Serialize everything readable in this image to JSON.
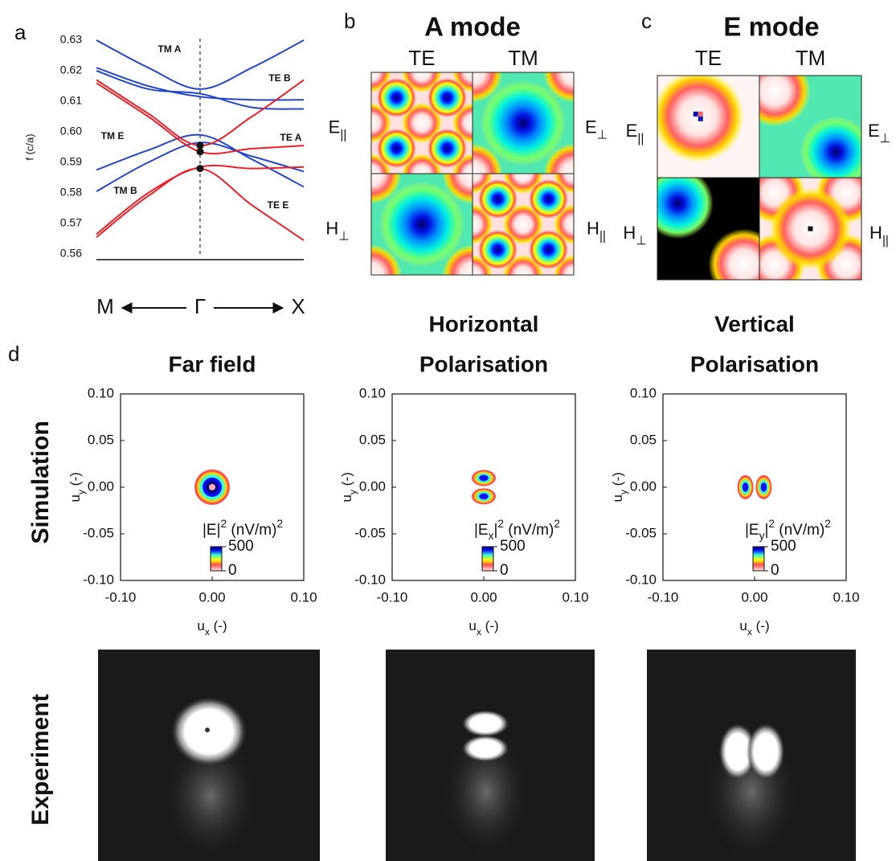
{
  "panel_letters": [
    "a",
    "b",
    "c",
    "d"
  ],
  "modes": [
    {
      "title": "A mode",
      "columns": [
        "TE",
        "TM"
      ],
      "fields": [
        {
          "text": "E",
          "sub": "||"
        },
        {
          "text": "E",
          "sub": "⊥"
        },
        {
          "text": "H",
          "sub": "⊥"
        },
        {
          "text": "H",
          "sub": "||"
        }
      ]
    },
    {
      "title": "E mode",
      "columns": [
        "TE",
        "TM"
      ],
      "fields": [
        {
          "text": "E",
          "sub": "||"
        },
        {
          "text": "E",
          "sub": "⊥"
        },
        {
          "text": "H",
          "sub": "⊥"
        },
        {
          "text": "H",
          "sub": "||"
        }
      ]
    }
  ],
  "rows": [
    "Simulation",
    "Experiment"
  ],
  "chart_data": [
    {
      "type": "line",
      "ylabel": "f (c/a)",
      "categories": [
        "M",
        null,
        "Γ",
        null,
        "X"
      ],
      "ylim": [
        0.56,
        0.63
      ],
      "yticks": [
        0.56,
        0.57,
        0.58,
        0.59,
        {
          "value": 0.6,
          "label": "0.60"
        },
        0.61,
        0.62,
        0.63
      ],
      "series": [
        {
          "name": "TM A",
          "color": "#2646c8",
          "values": [
            0.63,
            0.621,
            0.614,
            0.621,
            0.63
          ]
        },
        {
          "color": "#2646c8",
          "values": [
            0.621,
            0.615,
            0.6115,
            0.6105,
            0.6105
          ]
        },
        {
          "color": "#2646c8",
          "values": [
            0.62,
            0.614,
            0.6125,
            0.608,
            0.6075
          ]
        },
        {
          "name": "TM E",
          "color": "#2646c8",
          "values": [
            0.5875,
            0.594,
            0.599,
            0.591,
            0.582
          ]
        },
        {
          "name": "TM B",
          "color": "#2646c8",
          "values": [
            0.5805,
            0.59,
            0.5965,
            0.592,
            0.587
          ]
        },
        {
          "name": "TE B",
          "color": "#e8202a",
          "values": [
            0.617,
            0.606,
            0.5955,
            0.605,
            0.617
          ]
        },
        {
          "name": "TE A",
          "color": "#e8202a",
          "values": [
            0.616,
            0.605,
            0.5935,
            0.5945,
            0.5955
          ]
        },
        {
          "name": "TE E",
          "color": "#e8202a",
          "values": [
            0.5655,
            0.579,
            0.588,
            0.576,
            0.5645
          ]
        },
        {
          "color": "#e8202a",
          "values": [
            0.5665,
            0.58,
            0.5885,
            0.588,
            0.5885
          ]
        }
      ],
      "highlight_points": [
        0.5955,
        0.5935,
        0.588
      ]
    },
    {
      "type": "heatmap",
      "title": [
        "Far field"
      ],
      "xlim": [
        -0.1,
        0.1
      ],
      "ylim": [
        -0.1,
        0.1
      ],
      "xticks": [
        {
          "value": -0.1,
          "label": "-0.10"
        },
        {
          "value": 0,
          "label": "0.00"
        },
        {
          "value": 0.1,
          "label": "0.10"
        }
      ],
      "yticks": [
        {
          "value": -0.1,
          "label": "-0.10"
        },
        -0.05,
        {
          "value": 0,
          "label": "0.00"
        },
        0.05,
        {
          "value": 0.1,
          "label": "0.10"
        }
      ],
      "xlabel": [
        {
          "text": "u"
        },
        {
          "text": "x",
          "sub": true
        },
        {
          "text": " (-)"
        }
      ],
      "ylabel": [
        {
          "text": "u"
        },
        {
          "text": "y",
          "sub": true
        },
        {
          "text": " (-)"
        }
      ],
      "colorbar": {
        "label": [
          {
            "text": "|E|"
          },
          {
            "text": "2",
            "sup": true
          },
          {
            "text": " (nV/m)"
          },
          {
            "text": "2",
            "sup": true
          }
        ],
        "clim": [
          0,
          500
        ],
        "ticks": [
          500,
          0
        ]
      }
    },
    {
      "type": "heatmap",
      "title": [
        "Horizontal",
        "Polarisation"
      ],
      "xlim": [
        -0.1,
        0.1
      ],
      "ylim": [
        -0.1,
        0.1
      ],
      "xticks": [
        {
          "value": -0.1,
          "label": "-0.10"
        },
        {
          "value": 0,
          "label": "0.00"
        },
        {
          "value": 0.1,
          "label": "0.10"
        }
      ],
      "yticks": [
        {
          "value": -0.1,
          "label": "-0.10"
        },
        -0.05,
        {
          "value": 0,
          "label": "0.00"
        },
        0.05,
        {
          "value": 0.1,
          "label": "0.10"
        }
      ],
      "xlabel": [
        {
          "text": "u"
        },
        {
          "text": "x",
          "sub": true
        },
        {
          "text": " (-)"
        }
      ],
      "ylabel": [
        {
          "text": "u"
        },
        {
          "text": "y",
          "sub": true
        },
        {
          "text": " (-)"
        }
      ],
      "colorbar": {
        "label": [
          {
            "text": "|E"
          },
          {
            "text": "x",
            "sub": true
          },
          {
            "text": "|"
          },
          {
            "text": "2",
            "sup": true
          },
          {
            "text": " (nV/m)"
          },
          {
            "text": "2",
            "sup": true
          }
        ],
        "clim": [
          0,
          500
        ],
        "ticks": [
          500,
          0
        ]
      }
    },
    {
      "type": "heatmap",
      "title": [
        "Vertical",
        "Polarisation"
      ],
      "xlim": [
        -0.1,
        0.1
      ],
      "ylim": [
        -0.1,
        0.1
      ],
      "xticks": [
        {
          "value": -0.1,
          "label": "-0.10"
        },
        {
          "value": 0,
          "label": "0.00"
        },
        {
          "value": 0.1,
          "label": "0.10"
        }
      ],
      "yticks": [
        {
          "value": -0.1,
          "label": "-0.10"
        },
        -0.05,
        {
          "value": 0,
          "label": "0.00"
        },
        0.05,
        {
          "value": 0.1,
          "label": "0.10"
        }
      ],
      "xlabel": [
        {
          "text": "u"
        },
        {
          "text": "x",
          "sub": true
        },
        {
          "text": " (-)"
        }
      ],
      "ylabel": [
        {
          "text": "u"
        },
        {
          "text": "y",
          "sub": true
        },
        {
          "text": " (-)"
        }
      ],
      "colorbar": {
        "label": [
          {
            "text": "|E"
          },
          {
            "text": "y",
            "sub": true
          },
          {
            "text": "|"
          },
          {
            "text": "2",
            "sup": true
          },
          {
            "text": " (nV/m)"
          },
          {
            "text": "2",
            "sup": true
          }
        ],
        "clim": [
          0,
          500
        ],
        "ticks": [
          500,
          0
        ]
      }
    }
  ]
}
